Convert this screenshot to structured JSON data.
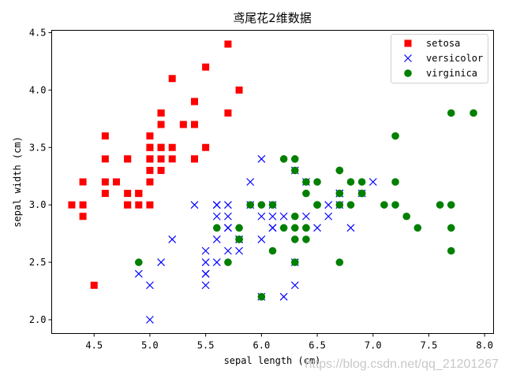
{
  "chart_data": {
    "type": "scatter",
    "title": "鸢尾花2维数据",
    "xlabel": "sepal length (cm)",
    "ylabel": "sepal width (cm)",
    "xlim": [
      4.12,
      8.08
    ],
    "ylim": [
      1.88,
      4.52
    ],
    "xticks": [
      "4.5",
      "5.0",
      "5.5",
      "6.0",
      "6.5",
      "7.0",
      "7.5",
      "8.0"
    ],
    "yticks": [
      "2.0",
      "2.5",
      "3.0",
      "3.5",
      "4.0",
      "4.5"
    ],
    "grid": false,
    "legend_placement": "top-right",
    "series": [
      {
        "name": "setosa",
        "marker": "square",
        "color": "#ff0000",
        "points": [
          [
            5.1,
            3.5
          ],
          [
            4.9,
            3.0
          ],
          [
            4.7,
            3.2
          ],
          [
            4.6,
            3.1
          ],
          [
            5.0,
            3.6
          ],
          [
            5.4,
            3.9
          ],
          [
            4.6,
            3.4
          ],
          [
            5.0,
            3.4
          ],
          [
            4.4,
            2.9
          ],
          [
            4.9,
            3.1
          ],
          [
            5.4,
            3.7
          ],
          [
            4.8,
            3.4
          ],
          [
            4.8,
            3.0
          ],
          [
            4.3,
            3.0
          ],
          [
            5.8,
            4.0
          ],
          [
            5.7,
            4.4
          ],
          [
            5.4,
            3.9
          ],
          [
            5.1,
            3.5
          ],
          [
            5.7,
            3.8
          ],
          [
            5.1,
            3.8
          ],
          [
            5.4,
            3.4
          ],
          [
            5.1,
            3.7
          ],
          [
            4.6,
            3.6
          ],
          [
            5.1,
            3.3
          ],
          [
            4.8,
            3.4
          ],
          [
            5.0,
            3.0
          ],
          [
            5.0,
            3.4
          ],
          [
            5.2,
            3.5
          ],
          [
            5.2,
            3.4
          ],
          [
            4.7,
            3.2
          ],
          [
            4.8,
            3.1
          ],
          [
            5.4,
            3.4
          ],
          [
            5.2,
            4.1
          ],
          [
            5.5,
            4.2
          ],
          [
            4.9,
            3.1
          ],
          [
            5.0,
            3.2
          ],
          [
            5.5,
            3.5
          ],
          [
            4.9,
            3.1
          ],
          [
            4.4,
            3.0
          ],
          [
            5.1,
            3.4
          ],
          [
            5.0,
            3.5
          ],
          [
            4.5,
            2.3
          ],
          [
            4.4,
            3.2
          ],
          [
            5.0,
            3.5
          ],
          [
            5.1,
            3.8
          ],
          [
            4.8,
            3.0
          ],
          [
            5.1,
            3.8
          ],
          [
            4.6,
            3.2
          ],
          [
            5.3,
            3.7
          ],
          [
            5.0,
            3.3
          ]
        ]
      },
      {
        "name": "versicolor",
        "marker": "x",
        "color": "#0000ff",
        "points": [
          [
            7.0,
            3.2
          ],
          [
            6.4,
            3.2
          ],
          [
            6.9,
            3.1
          ],
          [
            5.5,
            2.3
          ],
          [
            6.5,
            2.8
          ],
          [
            5.7,
            2.8
          ],
          [
            6.3,
            3.3
          ],
          [
            4.9,
            2.4
          ],
          [
            6.6,
            2.9
          ],
          [
            5.2,
            2.7
          ],
          [
            5.0,
            2.0
          ],
          [
            5.9,
            3.0
          ],
          [
            6.0,
            2.2
          ],
          [
            6.1,
            2.9
          ],
          [
            5.6,
            2.9
          ],
          [
            6.7,
            3.1
          ],
          [
            5.6,
            3.0
          ],
          [
            5.8,
            2.7
          ],
          [
            6.2,
            2.2
          ],
          [
            5.6,
            2.5
          ],
          [
            5.9,
            3.2
          ],
          [
            6.1,
            2.8
          ],
          [
            6.3,
            2.5
          ],
          [
            6.1,
            2.8
          ],
          [
            6.4,
            2.9
          ],
          [
            6.6,
            3.0
          ],
          [
            6.8,
            2.8
          ],
          [
            6.7,
            3.0
          ],
          [
            6.0,
            2.9
          ],
          [
            5.7,
            2.6
          ],
          [
            5.5,
            2.4
          ],
          [
            5.5,
            2.4
          ],
          [
            5.8,
            2.7
          ],
          [
            6.0,
            2.7
          ],
          [
            5.4,
            3.0
          ],
          [
            6.0,
            3.4
          ],
          [
            6.7,
            3.1
          ],
          [
            6.3,
            2.3
          ],
          [
            5.6,
            3.0
          ],
          [
            5.5,
            2.5
          ],
          [
            5.5,
            2.6
          ],
          [
            6.1,
            3.0
          ],
          [
            5.8,
            2.6
          ],
          [
            5.0,
            2.3
          ],
          [
            5.6,
            2.7
          ],
          [
            5.7,
            3.0
          ],
          [
            5.7,
            2.9
          ],
          [
            6.2,
            2.9
          ],
          [
            5.1,
            2.5
          ],
          [
            5.7,
            2.8
          ]
        ]
      },
      {
        "name": "virginica",
        "marker": "circle",
        "color": "#008000",
        "points": [
          [
            6.3,
            3.3
          ],
          [
            5.8,
            2.7
          ],
          [
            7.1,
            3.0
          ],
          [
            6.3,
            2.9
          ],
          [
            6.5,
            3.0
          ],
          [
            7.6,
            3.0
          ],
          [
            4.9,
            2.5
          ],
          [
            7.3,
            2.9
          ],
          [
            6.7,
            2.5
          ],
          [
            7.2,
            3.6
          ],
          [
            6.5,
            3.2
          ],
          [
            6.4,
            2.7
          ],
          [
            6.8,
            3.0
          ],
          [
            5.7,
            2.5
          ],
          [
            5.8,
            2.8
          ],
          [
            6.4,
            3.2
          ],
          [
            6.5,
            3.0
          ],
          [
            7.7,
            3.8
          ],
          [
            7.7,
            2.6
          ],
          [
            6.0,
            2.2
          ],
          [
            6.9,
            3.2
          ],
          [
            5.6,
            2.8
          ],
          [
            7.7,
            2.8
          ],
          [
            6.3,
            2.7
          ],
          [
            6.7,
            3.3
          ],
          [
            7.2,
            3.2
          ],
          [
            6.2,
            2.8
          ],
          [
            6.1,
            3.0
          ],
          [
            6.4,
            2.8
          ],
          [
            7.2,
            3.0
          ],
          [
            7.4,
            2.8
          ],
          [
            7.9,
            3.8
          ],
          [
            6.4,
            2.8
          ],
          [
            6.3,
            2.8
          ],
          [
            6.1,
            2.6
          ],
          [
            7.7,
            3.0
          ],
          [
            6.3,
            3.4
          ],
          [
            6.4,
            3.1
          ],
          [
            6.0,
            3.0
          ],
          [
            6.9,
            3.1
          ],
          [
            6.7,
            3.1
          ],
          [
            6.9,
            3.1
          ],
          [
            5.8,
            2.7
          ],
          [
            6.8,
            3.2
          ],
          [
            6.7,
            3.3
          ],
          [
            6.7,
            3.0
          ],
          [
            6.3,
            2.5
          ],
          [
            6.5,
            3.0
          ],
          [
            6.2,
            3.4
          ],
          [
            5.9,
            3.0
          ]
        ]
      }
    ]
  },
  "watermark": "https://blog.csdn.net/qq_21201267"
}
